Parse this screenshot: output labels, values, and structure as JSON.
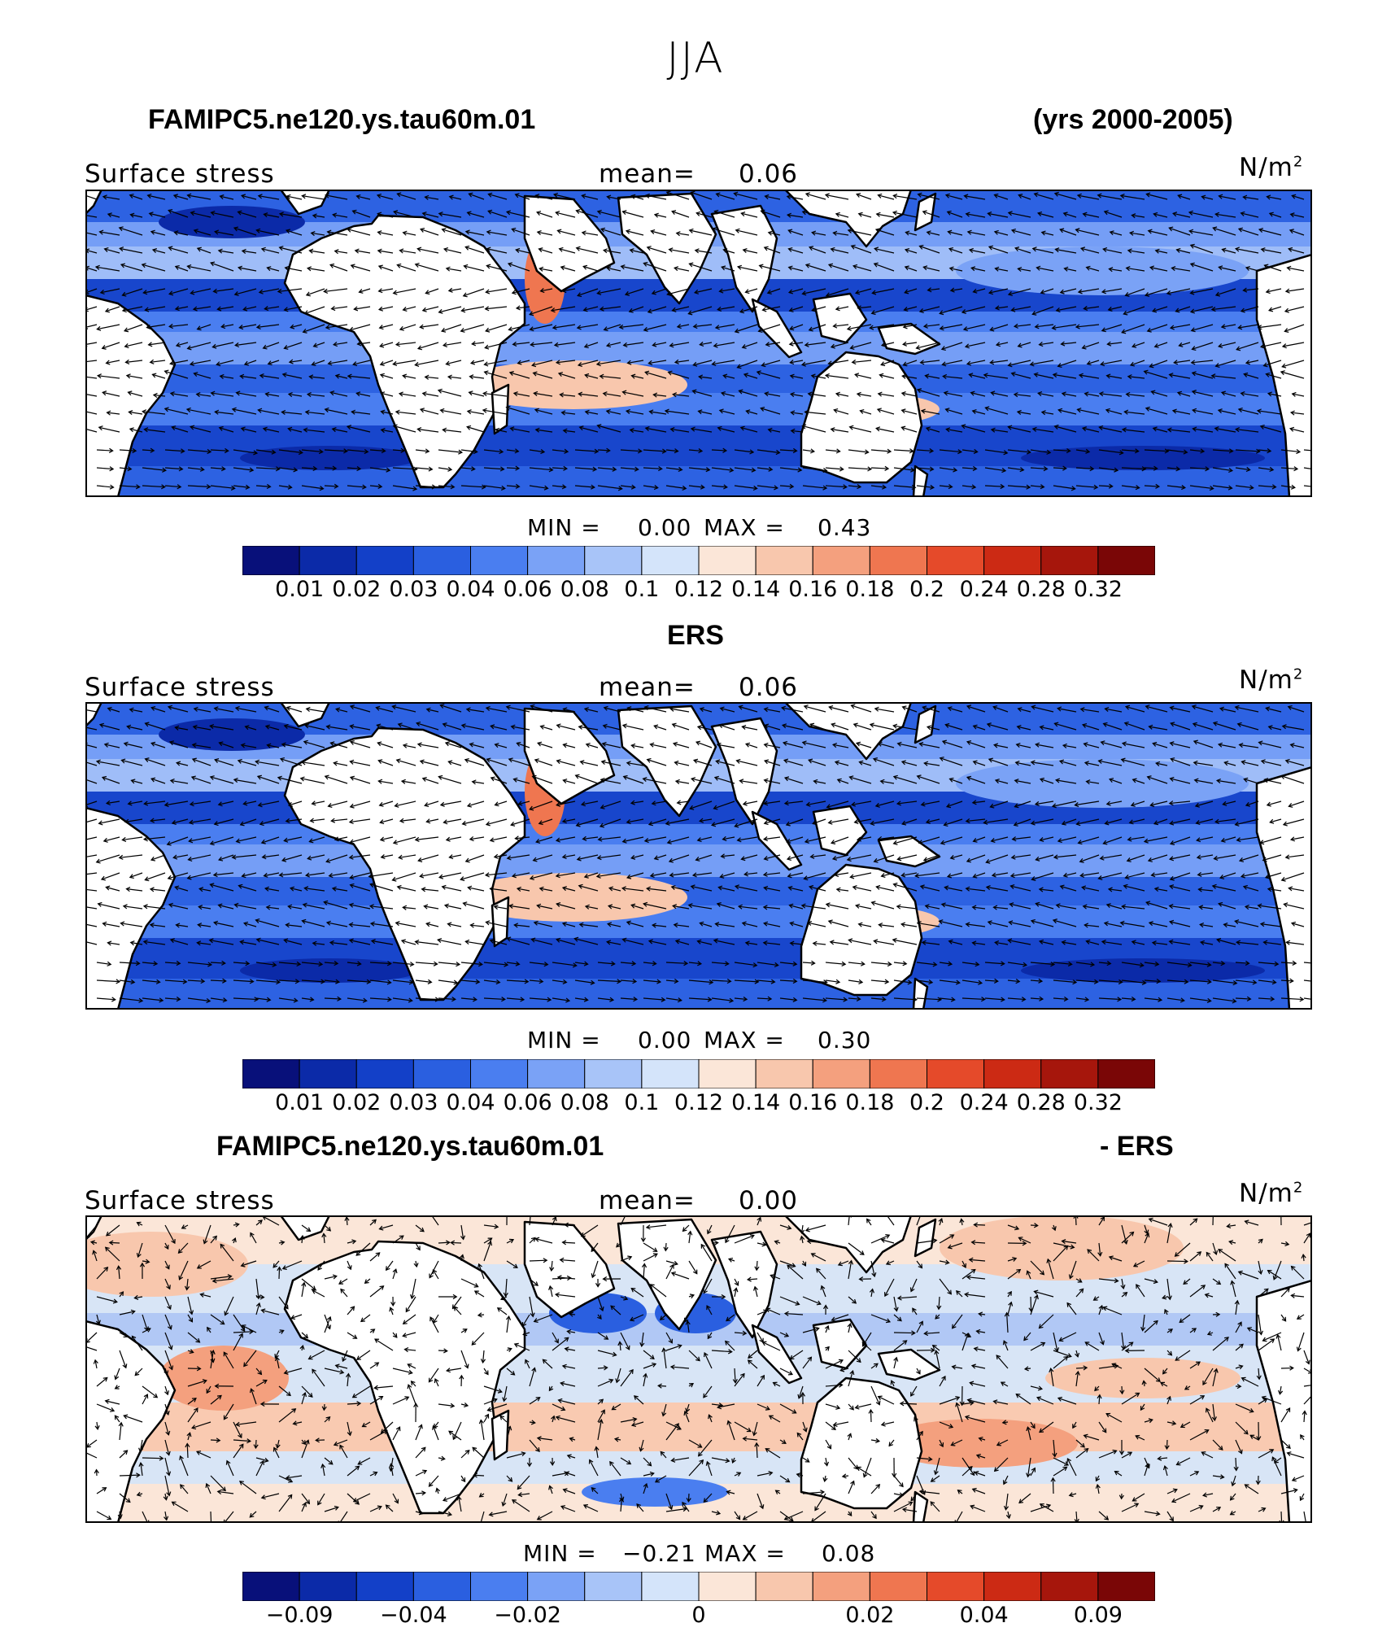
{
  "figure": {
    "title": "JJA"
  },
  "panels": [
    {
      "title_left": "FAMIPC5.ne120.ys.tau60m.01",
      "title_right": "(yrs 2000-2005)",
      "variable_label": "Surface stress",
      "mean_label": "mean=",
      "mean_value": "0.06",
      "units": "N/m",
      "units_exp": "2",
      "min_label": "MIN =",
      "min_value": "0.00",
      "max_label": "MAX =",
      "max_value": "0.43",
      "colorbar_ticks": [
        "0.01",
        "0.02",
        "0.03",
        "0.04",
        "0.06",
        "0.08",
        "0.1",
        "0.12",
        "0.14",
        "0.16",
        "0.18",
        "0.2",
        "0.24",
        "0.28",
        "0.32"
      ]
    },
    {
      "title_center": "ERS",
      "variable_label": "Surface stress",
      "mean_label": "mean=",
      "mean_value": "0.06",
      "units": "N/m",
      "units_exp": "2",
      "min_label": "MIN =",
      "min_value": "0.00",
      "max_label": "MAX =",
      "max_value": "0.30",
      "colorbar_ticks": [
        "0.01",
        "0.02",
        "0.03",
        "0.04",
        "0.06",
        "0.08",
        "0.1",
        "0.12",
        "0.14",
        "0.16",
        "0.18",
        "0.2",
        "0.24",
        "0.28",
        "0.32"
      ]
    },
    {
      "title_left": "FAMIPC5.ne120.ys.tau60m.01",
      "title_right": "- ERS",
      "variable_label": "Surface stress",
      "mean_label": "mean=",
      "mean_value": "0.00",
      "units": "N/m",
      "units_exp": "2",
      "min_label": "MIN =",
      "min_value": "−0.21",
      "max_label": "MAX =",
      "max_value": "0.08",
      "colorbar_ticks": [
        "−0.09",
        "−0.04",
        "−0.02",
        "0",
        "0.02",
        "0.04",
        "0.09"
      ]
    }
  ],
  "colorbar_colors": [
    "#08107a",
    "#0b2aa8",
    "#1340c8",
    "#2a5fe0",
    "#4a7ef0",
    "#7aa2f6",
    "#a8c4f8",
    "#d4e4fa",
    "#fbe6d8",
    "#f8c7ad",
    "#f4a07e",
    "#ef7650",
    "#e54a2a",
    "#cc2a14",
    "#a6160c",
    "#7a0606"
  ],
  "colors": {
    "land": "#ffffff",
    "coast": "#000000",
    "arrow": "#000000"
  }
}
